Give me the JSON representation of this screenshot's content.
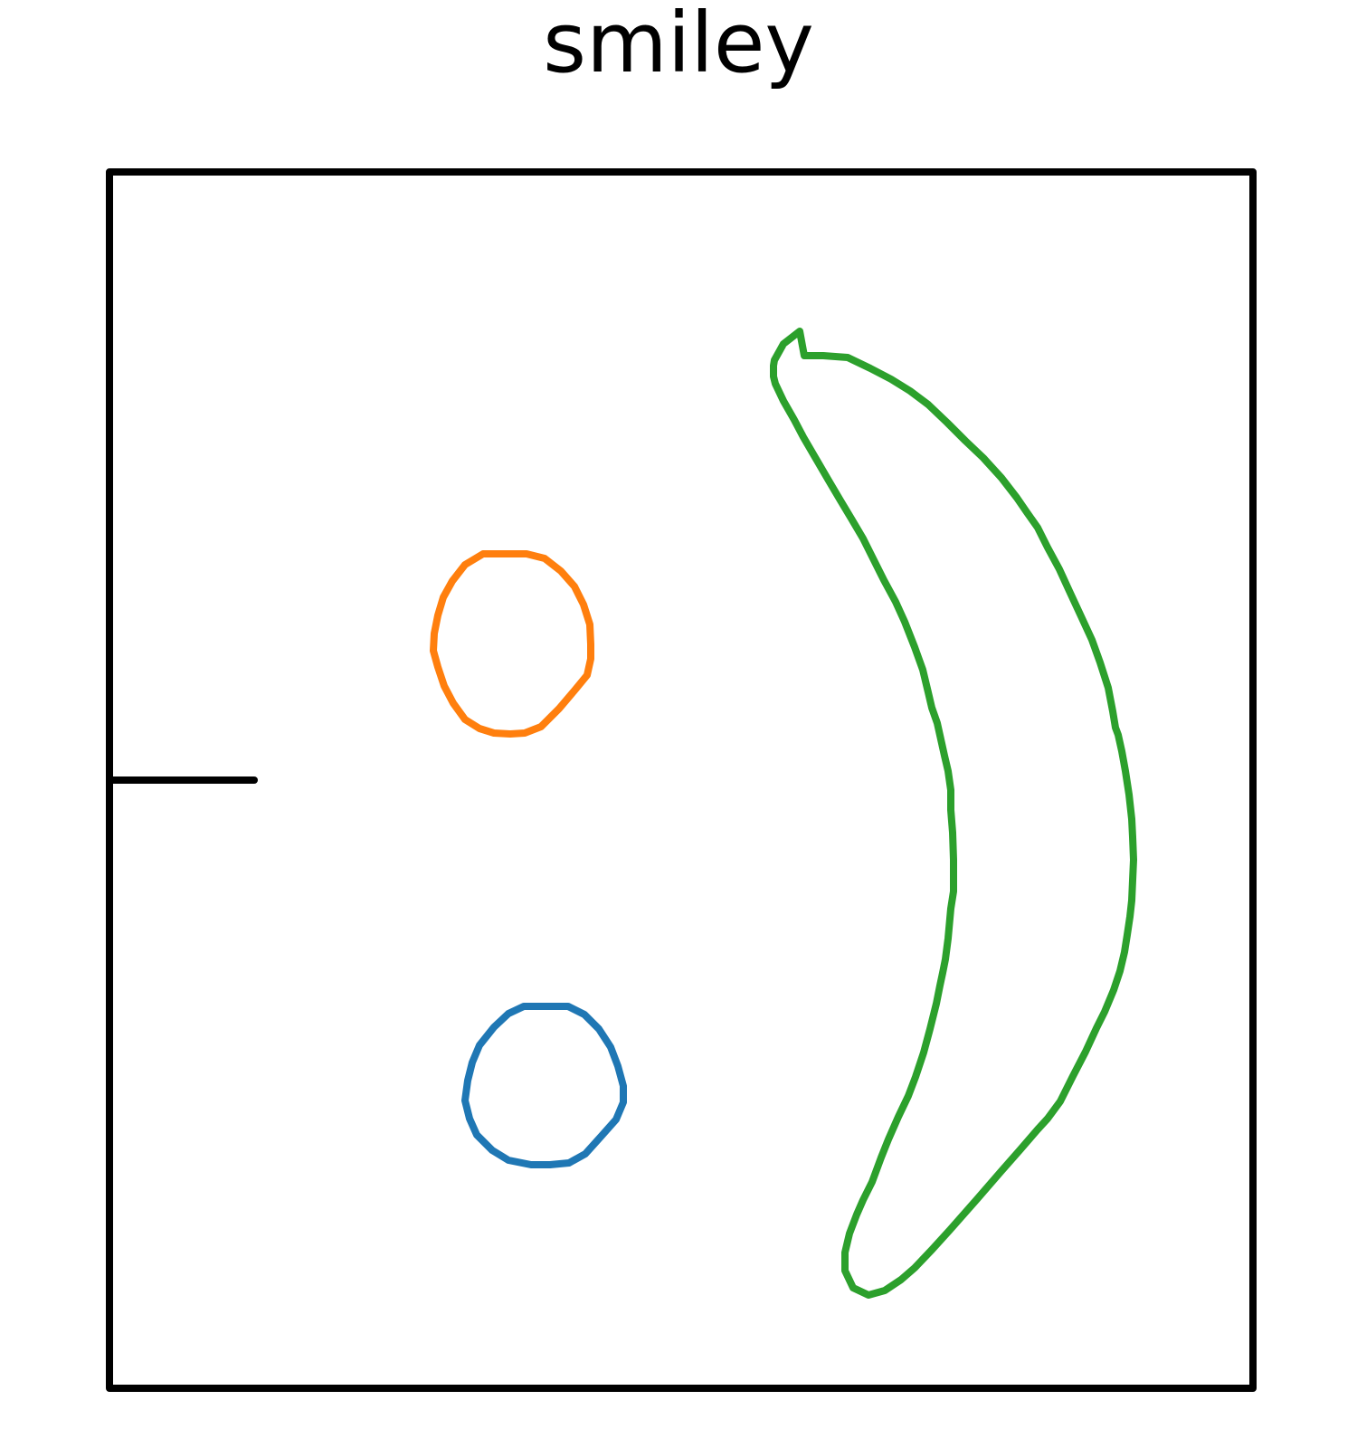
{
  "title": "smiley",
  "colors": {
    "frame": "#000000",
    "top_eye": "#ff7f0e",
    "bottom_eye": "#1f77b4",
    "mouth": "#2ca02c"
  }
}
